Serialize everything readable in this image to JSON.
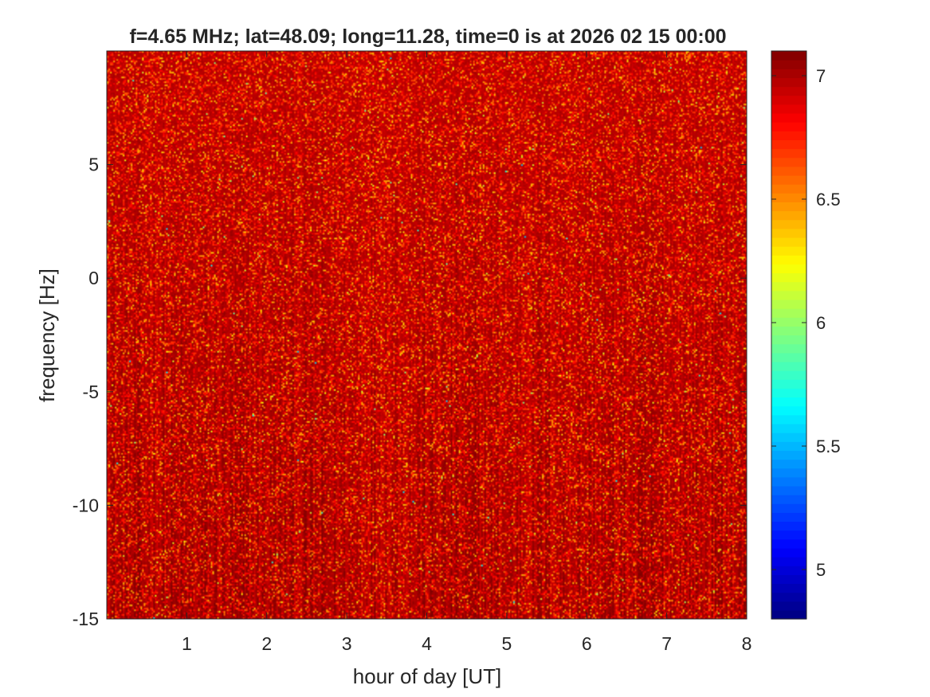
{
  "chart_data": {
    "type": "heatmap",
    "title": "f=4.65 MHz;  lat=48.09; long=11.28, time=0 is at 2026 02 15 00:00",
    "xlabel": "hour of day [UT]",
    "ylabel": "frequency [Hz]",
    "xlim": [
      0,
      8
    ],
    "ylim": [
      -15,
      10
    ],
    "x_ticks": [
      1,
      2,
      3,
      4,
      5,
      6,
      7,
      8
    ],
    "x_tick_labels": [
      "1",
      "2",
      "3",
      "4",
      "5",
      "6",
      "7",
      "8"
    ],
    "y_ticks": [
      -15,
      -10,
      -5,
      0,
      5
    ],
    "y_tick_labels": [
      "-15",
      "-10",
      "-5",
      "0",
      "5"
    ],
    "colorbar": {
      "colormap": "jet",
      "clim": [
        4.8,
        7.1
      ],
      "ticks": [
        5,
        5.5,
        6,
        6.5,
        7
      ],
      "tick_labels": [
        "5",
        "5.5",
        "6",
        "6.5",
        "7"
      ]
    },
    "value_summary": {
      "typical_range": [
        6.6,
        7.1
      ],
      "note_values": "predominantly high values (dark red / red) with sparse orange-yellow speckle; darker vertical streaks at lower frequencies"
    },
    "grid": false,
    "box": true
  }
}
